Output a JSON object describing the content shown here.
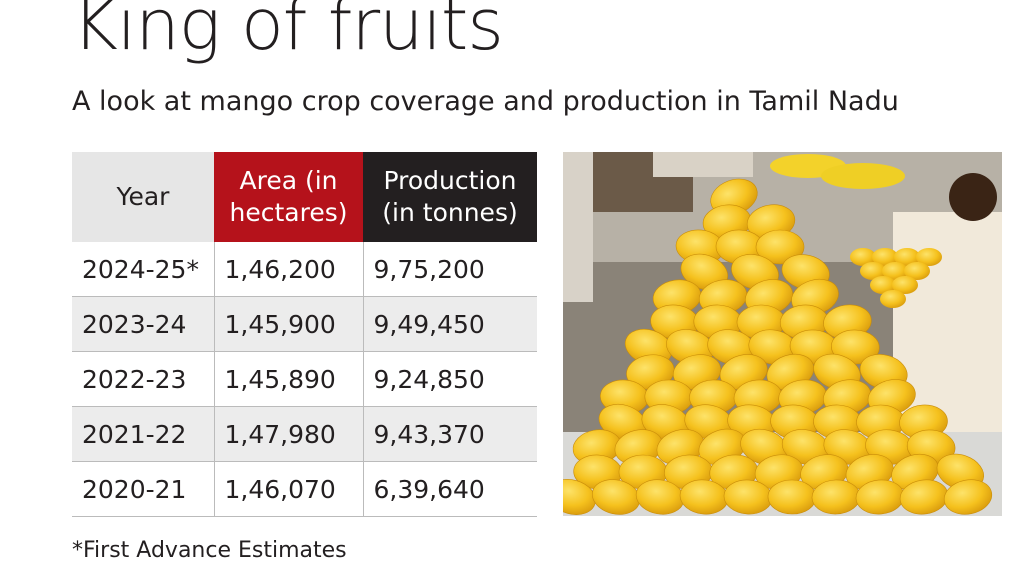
{
  "header": {
    "title": "King of fruits",
    "subtitle": "A look at mango crop coverage and production in Tamil Nadu"
  },
  "table": {
    "columns": [
      "Year",
      "Area (in hectares)",
      "Production (in tonnes)"
    ],
    "rows": [
      [
        "2024-25*",
        "1,46,200",
        "9,75,200"
      ],
      [
        "2023-24",
        "1,45,900",
        "9,49,450"
      ],
      [
        "2022-23",
        "1,45,890",
        "9,24,850"
      ],
      [
        "2021-22",
        "1,47,980",
        "9,43,370"
      ],
      [
        "2020-21",
        "1,46,070",
        "6,39,640"
      ]
    ]
  },
  "footnote": "*First Advance Estimates"
}
